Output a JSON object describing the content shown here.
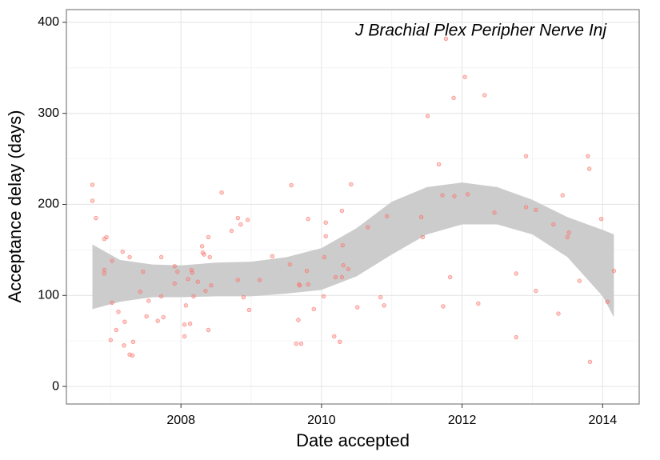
{
  "chart_data": {
    "type": "scatter",
    "title": "J Brachial Plex Peripher Nerve Inj",
    "x_label": "Date accepted",
    "y_label": "Acceptance delay (days)",
    "xlim": [
      2006.37,
      2014.52
    ],
    "ylim": [
      -19.3,
      414
    ],
    "xticks": [
      2008,
      2010,
      2012,
      2014
    ],
    "yticks": [
      0,
      100,
      200,
      300,
      400
    ],
    "xminor": [
      2007,
      2009,
      2011,
      2013
    ],
    "yminor": [
      50,
      150,
      250,
      350
    ],
    "grid": true,
    "point_color": "#f8766d",
    "band_color": "#cccccc",
    "x": [
      2006.74,
      2006.74,
      2006.79,
      2006.91,
      2006.94,
      2006.91,
      2006.91,
      2007.0,
      2007.02,
      2007.02,
      2007.08,
      2007.11,
      2007.17,
      2007.19,
      2007.2,
      2007.27,
      2007.27,
      2007.31,
      2007.32,
      2007.42,
      2007.46,
      2007.51,
      2007.54,
      2007.67,
      2007.72,
      2007.72,
      2007.75,
      2007.91,
      2007.91,
      2007.95,
      2008.05,
      2008.05,
      2008.07,
      2008.1,
      2008.13,
      2008.15,
      2008.16,
      2008.18,
      2008.24,
      2008.3,
      2008.31,
      2008.33,
      2008.35,
      2008.39,
      2008.39,
      2008.41,
      2008.43,
      2008.58,
      2008.72,
      2008.81,
      2008.81,
      2008.85,
      2008.89,
      2008.95,
      2008.97,
      2009.12,
      2009.3,
      2009.55,
      2009.57,
      2009.64,
      2009.67,
      2009.68,
      2009.69,
      2009.71,
      2009.79,
      2009.81,
      2009.81,
      2009.89,
      2010.03,
      2010.04,
      2010.06,
      2010.06,
      2010.18,
      2010.2,
      2010.26,
      2010.29,
      2010.29,
      2010.3,
      2010.31,
      2010.38,
      2010.42,
      2010.51,
      2010.66,
      2010.84,
      2010.89,
      2010.93,
      2011.42,
      2011.44,
      2011.51,
      2011.67,
      2011.72,
      2011.73,
      2011.77,
      2011.83,
      2011.88,
      2011.89,
      2012.04,
      2012.08,
      2012.23,
      2012.32,
      2012.46,
      2012.77,
      2012.77,
      2012.91,
      2012.91,
      2013.05,
      2013.05,
      2013.3,
      2013.37,
      2013.43,
      2013.5,
      2013.52,
      2013.67,
      2013.79,
      2013.81,
      2013.82,
      2013.98,
      2014.07,
      2014.16
    ],
    "values": [
      221.5,
      204,
      185,
      162,
      164,
      128,
      124,
      51,
      138,
      92,
      62,
      82,
      148,
      45,
      71,
      142,
      35,
      34,
      49,
      104,
      126,
      77,
      94,
      72,
      142,
      99,
      76,
      132,
      113,
      126,
      68,
      55,
      89,
      118,
      69,
      128,
      125,
      99,
      115,
      154,
      147,
      145,
      105,
      164,
      62,
      142,
      111,
      213,
      171,
      185,
      117,
      178,
      98,
      183,
      84,
      117,
      143,
      134,
      221,
      47,
      73,
      112,
      111,
      47,
      127,
      112,
      184,
      85,
      99,
      142,
      180,
      165,
      55,
      120,
      49,
      193,
      120,
      155,
      133,
      129,
      222,
      87,
      175,
      98,
      89,
      187,
      186,
      164,
      297,
      244,
      210,
      88,
      382,
      120,
      317,
      209,
      340,
      211,
      91,
      320,
      191,
      124,
      54,
      253,
      197,
      194,
      105,
      178,
      80,
      210,
      164,
      169,
      116,
      253,
      239,
      27,
      184,
      93,
      127
    ],
    "band": {
      "x": [
        2006.74,
        2007.13,
        2007.59,
        2008,
        2008.5,
        2009,
        2009.5,
        2010,
        2010.5,
        2011,
        2011.5,
        2012,
        2012.5,
        2013,
        2013.5,
        2014,
        2014.16
      ],
      "upper": [
        156,
        139,
        134,
        133,
        136,
        137,
        142,
        152,
        174,
        203,
        219,
        224,
        219,
        205,
        186,
        172,
        167
      ],
      "lower": [
        85,
        93,
        98,
        98,
        99,
        99,
        102,
        106,
        121,
        145,
        167,
        178,
        178,
        167,
        142,
        99,
        76
      ]
    }
  }
}
